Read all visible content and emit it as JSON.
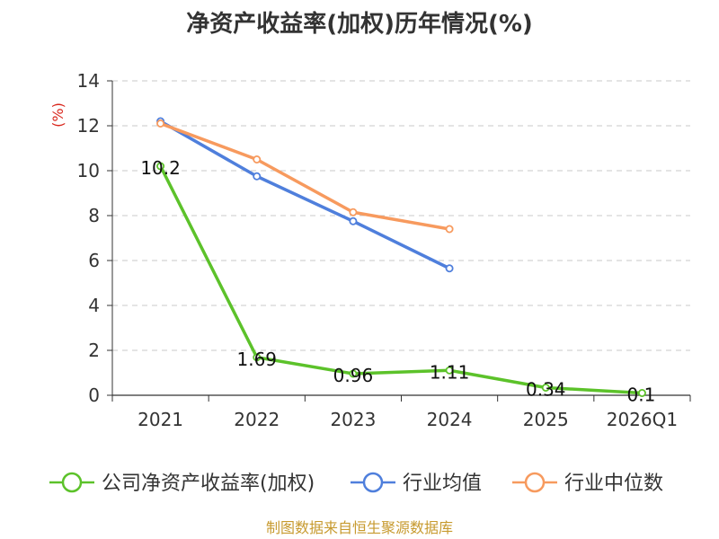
{
  "chart_data": {
    "type": "line",
    "title": "净资产收益率(加权)历年情况(%)",
    "ylabel": "(%)",
    "xlabel": "",
    "categories": [
      "2021",
      "2022",
      "2023",
      "2024",
      "2025",
      "2026Q1"
    ],
    "ylim": [
      0,
      14
    ],
    "yticks": [
      "0",
      "2",
      "4",
      "6",
      "8",
      "10",
      "12",
      "14"
    ],
    "grid": true,
    "legend_position": "bottom",
    "series": [
      {
        "name": "公司净资产收益率(加权)",
        "color": "#5cc22a",
        "values": [
          10.2,
          1.69,
          0.96,
          1.11,
          0.34,
          0.1
        ],
        "labels": [
          "10.2",
          "1.69",
          "0.96",
          "1.11",
          "0.34",
          "0.1"
        ]
      },
      {
        "name": "行业均值",
        "color": "#4f7fdc",
        "values": [
          12.2,
          9.75,
          7.75,
          5.65,
          null,
          null
        ]
      },
      {
        "name": "行业中位数",
        "color": "#f79a5e",
        "values": [
          12.1,
          10.5,
          8.15,
          7.4,
          null,
          null
        ]
      }
    ]
  },
  "colors": {
    "ylabel": "#d9281e",
    "source": "#c79a2f",
    "axis": "#333333",
    "grid": "#c8c8c8"
  },
  "source_text": "制图数据来自恒生聚源数据库"
}
